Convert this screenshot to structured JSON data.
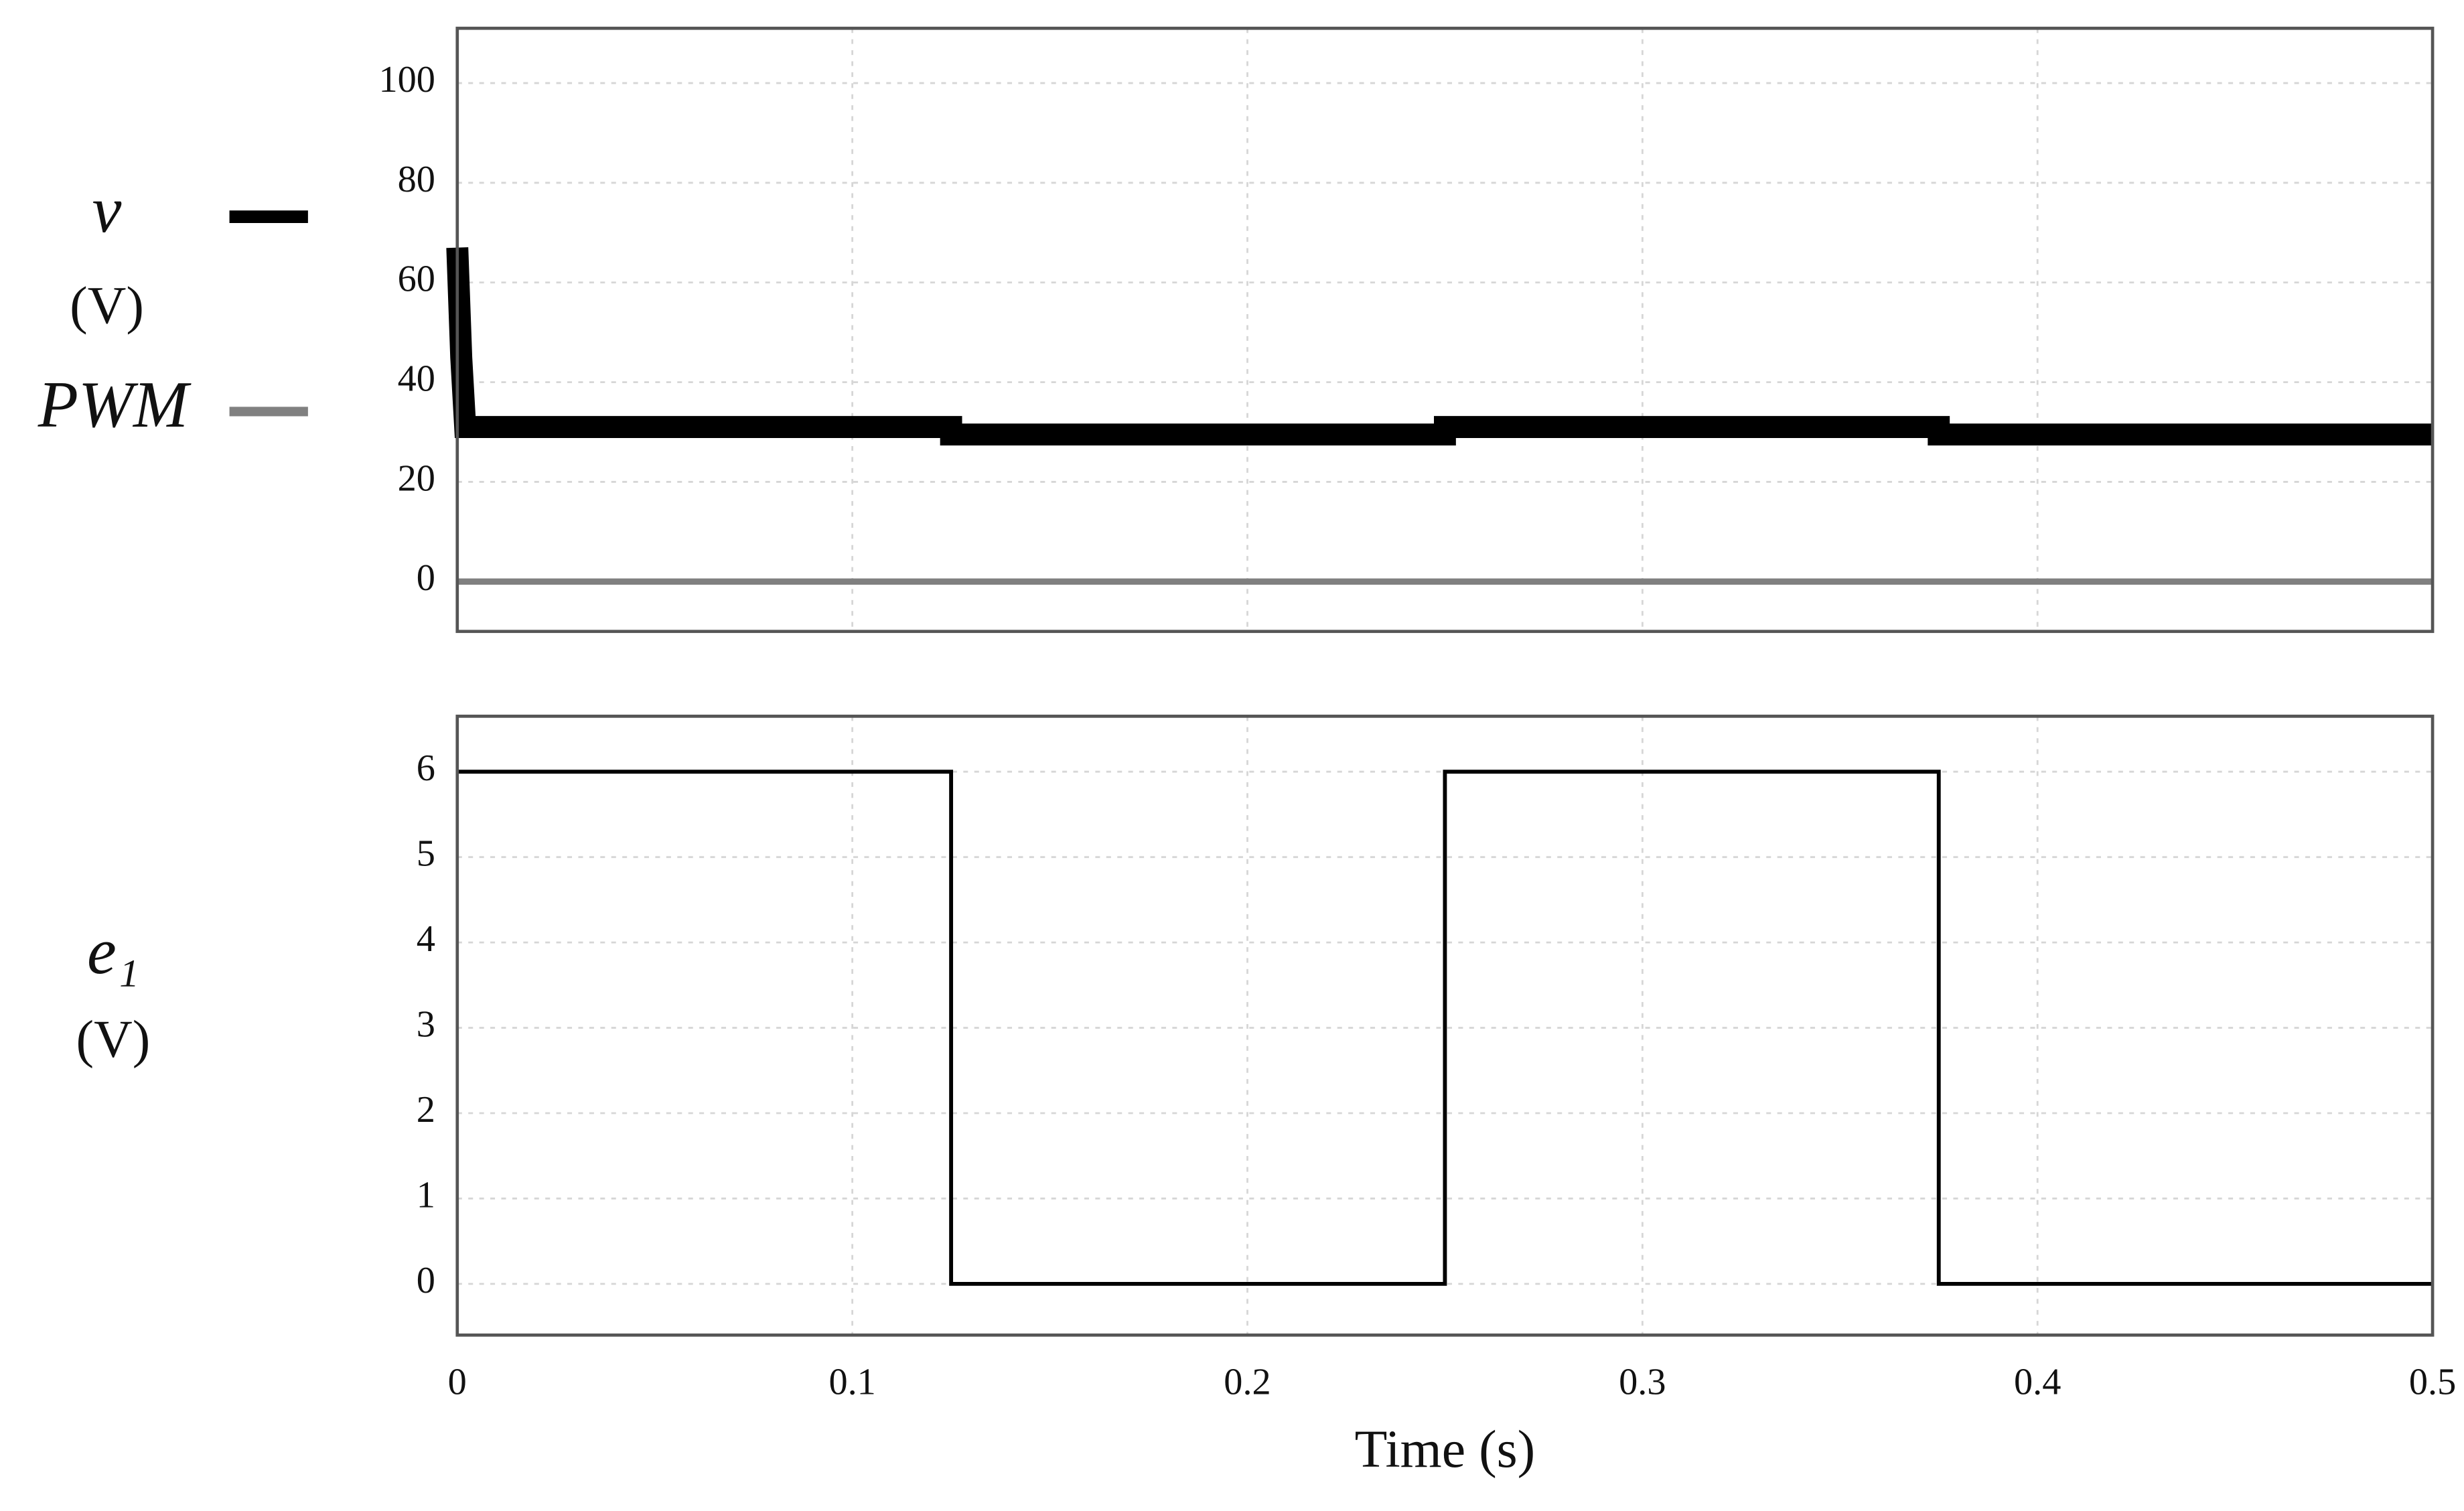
{
  "chart_data": [
    {
      "type": "line",
      "ylabel": "(V)",
      "legend": true,
      "grid": true,
      "xlim": [
        0,
        0.5
      ],
      "xticks": [
        0,
        0.1,
        0.2,
        0.3,
        0.4,
        0.5
      ],
      "ylim": [
        -10,
        111
      ],
      "yticks": [
        0,
        20,
        40,
        60,
        80,
        100
      ],
      "series": [
        {
          "name": "v",
          "color": "#000000",
          "x": [
            0,
            0.001,
            0.002,
            0.125,
            0.125,
            0.25,
            0.25,
            0.375,
            0.375,
            0.5
          ],
          "values": [
            67,
            45,
            31,
            31,
            29.5,
            29.5,
            31,
            31,
            29.5,
            29.5
          ]
        },
        {
          "name": "PWM",
          "color": "#808080",
          "x": [
            0,
            0.5
          ],
          "values": [
            0,
            0
          ]
        }
      ]
    },
    {
      "type": "line",
      "ylabel": "(V)",
      "xlabel": "Time (s)",
      "legend": false,
      "grid": true,
      "xlim": [
        0,
        0.5
      ],
      "xticks": [
        0,
        0.1,
        0.2,
        0.3,
        0.4,
        0.5
      ],
      "ylim": [
        -0.6,
        6.65
      ],
      "yticks": [
        0,
        1,
        2,
        3,
        4,
        5,
        6
      ],
      "series": [
        {
          "name": "e₁",
          "color": "#000000",
          "x": [
            0,
            0.125,
            0.125,
            0.25,
            0.25,
            0.375,
            0.375,
            0.5
          ],
          "values": [
            6,
            6,
            0,
            0,
            6,
            6,
            0,
            0
          ]
        }
      ]
    }
  ]
}
